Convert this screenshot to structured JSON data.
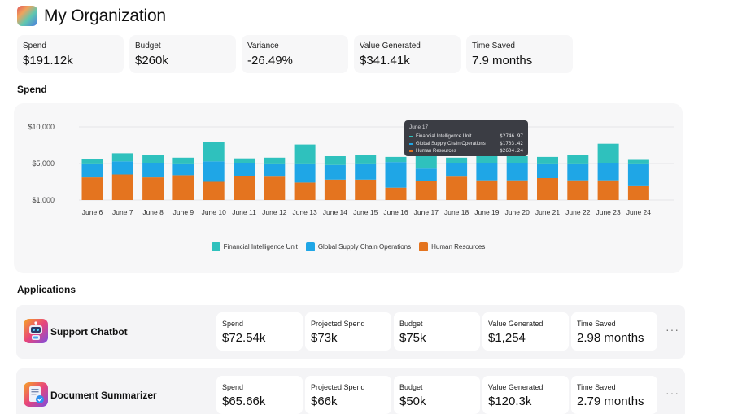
{
  "header": {
    "title": "My Organization"
  },
  "stats": [
    {
      "label": "Spend",
      "value": "$191.12k"
    },
    {
      "label": "Budget",
      "value": "$260k"
    },
    {
      "label": "Variance",
      "value": "-26.49%"
    },
    {
      "label": "Value Generated",
      "value": "$341.41k"
    },
    {
      "label": "Time Saved",
      "value": "7.9 months"
    }
  ],
  "spend_section": {
    "title": "Spend"
  },
  "colors": {
    "financial": "#2fc1bd",
    "global": "#1fa6e6",
    "human": "#e4741f"
  },
  "chart_data": {
    "type": "bar",
    "stacked": true,
    "title": "Spend",
    "y_ticks": [
      "$10,000",
      "$5,000",
      "$1,000"
    ],
    "categories": [
      "June 6",
      "June 7",
      "June 8",
      "June 9",
      "June 10",
      "June 11",
      "June 12",
      "June 13",
      "June 14",
      "June 15",
      "June 16",
      "June 17",
      "June 18",
      "June 19",
      "June 20",
      "June 21",
      "June 22",
      "June 23",
      "June 24"
    ],
    "series": [
      {
        "name": "Human Resources",
        "values": [
          3100,
          3500,
          3100,
          3400,
          2500,
          3300,
          3200,
          2400,
          2800,
          2800,
          1700,
          2604,
          3200,
          2700,
          2700,
          3000,
          2700,
          2700,
          1900
        ]
      },
      {
        "name": "Global Supply Chain Operations",
        "values": [
          1800,
          1800,
          1900,
          1500,
          2800,
          1800,
          1700,
          2500,
          2000,
          2100,
          3500,
          1703,
          1800,
          2400,
          2400,
          1900,
          2200,
          2300,
          3000
        ]
      },
      {
        "name": "Financial Intelligence Unit",
        "values": [
          700,
          1100,
          1200,
          900,
          2700,
          600,
          900,
          2700,
          1200,
          1300,
          700,
          2747,
          800,
          1000,
          900,
          1000,
          1300,
          2700,
          600
        ]
      }
    ],
    "legend": [
      "Financial Intelligence Unit",
      "Global Supply Chain Operations",
      "Human Resources"
    ],
    "tooltip": {
      "date": "June 17",
      "rows": [
        {
          "name": "Financial Intelligence Unit",
          "value": "$2746.97"
        },
        {
          "name": "Global Supply Chain Operations",
          "value": "$1703.42"
        },
        {
          "name": "Human Resources",
          "value": "$2604.24"
        }
      ]
    }
  },
  "applications": {
    "title": "Applications",
    "items": [
      {
        "name": "Support Chatbot",
        "icon": "robot-icon",
        "metrics": [
          {
            "label": "Spend",
            "value": "$72.54k"
          },
          {
            "label": "Projected Spend",
            "value": "$73k"
          },
          {
            "label": "Budget",
            "value": "$75k"
          },
          {
            "label": "Value Generated",
            "value": "$1,254"
          },
          {
            "label": "Time Saved",
            "value": "2.98 months"
          }
        ]
      },
      {
        "name": "Document Summarizer",
        "icon": "document-icon",
        "metrics": [
          {
            "label": "Spend",
            "value": "$65.66k"
          },
          {
            "label": "Projected Spend",
            "value": "$66k"
          },
          {
            "label": "Budget",
            "value": "$50k"
          },
          {
            "label": "Value Generated",
            "value": "$120.3k"
          },
          {
            "label": "Time Saved",
            "value": "2.79 months"
          }
        ]
      }
    ],
    "more_label": "···"
  }
}
